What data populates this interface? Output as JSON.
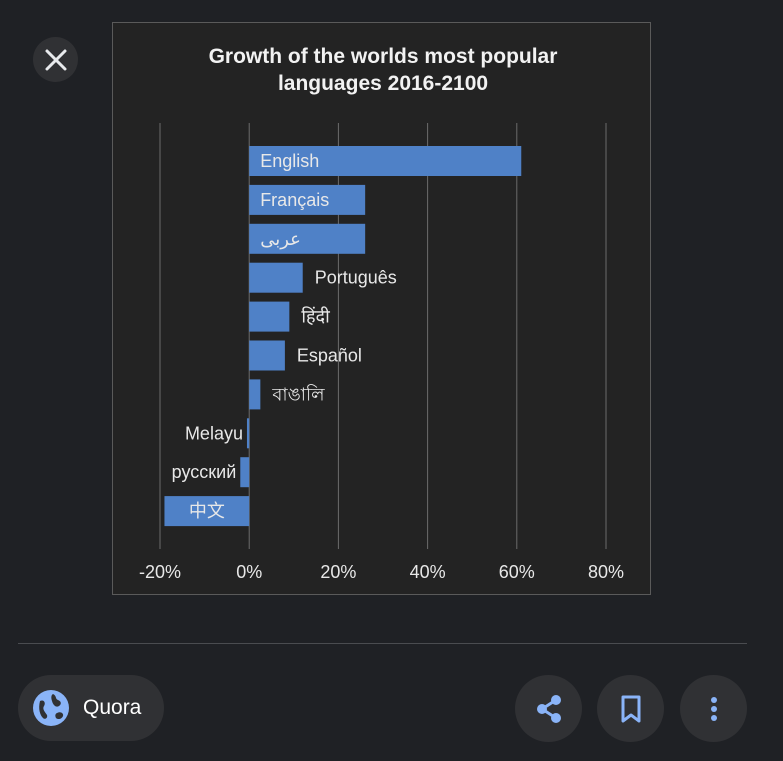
{
  "viewer": {
    "close_icon": "close-icon",
    "source_name": "Quora",
    "source_icon": "globe-icon",
    "actions": [
      "share-icon",
      "bookmark-icon",
      "more-vert-icon"
    ],
    "accent_color": "#8ab4f8"
  },
  "chart_data": {
    "type": "bar",
    "orientation": "horizontal",
    "title": "Growth of the worlds most popular languages 2016-2100",
    "title_lines": [
      "Growth of the worlds most popular",
      "languages 2016-2100"
    ],
    "categories": [
      "English",
      "Français",
      "عربى",
      "Português",
      "हिंदी",
      "Español",
      "বাঙালি",
      "Melayu",
      "русский",
      "中文"
    ],
    "values": [
      61,
      26,
      26,
      12,
      9,
      8,
      2.5,
      -0.5,
      -2,
      -19
    ],
    "unit": "%",
    "xlim": [
      -20,
      80
    ],
    "ticks": [
      "-20%",
      "0%",
      "20%",
      "40%",
      "60%",
      "80%"
    ],
    "tick_values": [
      -20,
      0,
      20,
      40,
      60,
      80
    ],
    "grid": true,
    "bar_color": "#4f81c7",
    "background": "#232323"
  }
}
